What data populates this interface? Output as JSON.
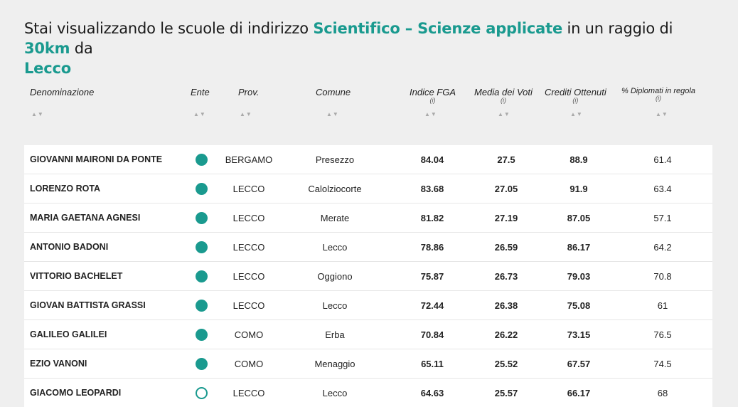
{
  "title": {
    "prefix": "Stai visualizzando le scuole di indirizzo ",
    "indirizzo": "Scientifico – Scienze applicate",
    "middle": " in un raggio di ",
    "raggio": "30km",
    "suffix": " da",
    "citta": "Lecco"
  },
  "headers": {
    "denominazione": "Denominazione",
    "ente": "Ente",
    "prov": "Prov.",
    "comune": "Comune",
    "indice": "Indice FGA",
    "media": "Media dei Voti",
    "crediti": "Crediti Ottenuti",
    "diplomati": "% Diplomati in regola",
    "info": "(i)",
    "sort": "▲▼"
  },
  "colors": {
    "accent": "#1a9a8f"
  },
  "rows": [
    {
      "name": "GIOVANNI MAIRONI DA PONTE",
      "ente": "filled",
      "prov": "BERGAMO",
      "comune": "Presezzo",
      "indice": "84.04",
      "media": "27.5",
      "crediti": "88.9",
      "diplomati": "61.4"
    },
    {
      "name": "LORENZO ROTA",
      "ente": "filled",
      "prov": "LECCO",
      "comune": "Calolziocorte",
      "indice": "83.68",
      "media": "27.05",
      "crediti": "91.9",
      "diplomati": "63.4"
    },
    {
      "name": "MARIA GAETANA AGNESI",
      "ente": "filled",
      "prov": "LECCO",
      "comune": "Merate",
      "indice": "81.82",
      "media": "27.19",
      "crediti": "87.05",
      "diplomati": "57.1"
    },
    {
      "name": "ANTONIO BADONI",
      "ente": "filled",
      "prov": "LECCO",
      "comune": "Lecco",
      "indice": "78.86",
      "media": "26.59",
      "crediti": "86.17",
      "diplomati": "64.2"
    },
    {
      "name": "VITTORIO BACHELET",
      "ente": "filled",
      "prov": "LECCO",
      "comune": "Oggiono",
      "indice": "75.87",
      "media": "26.73",
      "crediti": "79.03",
      "diplomati": "70.8"
    },
    {
      "name": "GIOVAN BATTISTA GRASSI",
      "ente": "filled",
      "prov": "LECCO",
      "comune": "Lecco",
      "indice": "72.44",
      "media": "26.38",
      "crediti": "75.08",
      "diplomati": "61"
    },
    {
      "name": "GALILEO GALILEI",
      "ente": "filled",
      "prov": "COMO",
      "comune": "Erba",
      "indice": "70.84",
      "media": "26.22",
      "crediti": "73.15",
      "diplomati": "76.5"
    },
    {
      "name": "EZIO VANONI",
      "ente": "filled",
      "prov": "COMO",
      "comune": "Menaggio",
      "indice": "65.11",
      "media": "25.52",
      "crediti": "67.57",
      "diplomati": "74.5"
    },
    {
      "name": "GIACOMO LEOPARDI",
      "ente": "empty",
      "prov": "LECCO",
      "comune": "Lecco",
      "indice": "64.63",
      "media": "25.57",
      "crediti": "66.17",
      "diplomati": "68"
    }
  ]
}
